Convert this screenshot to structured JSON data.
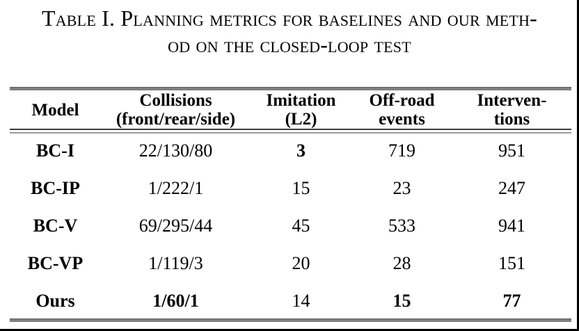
{
  "title": {
    "line1": "Table I. Planning metrics for baselines and our meth-",
    "line2": "od on the closed-loop test"
  },
  "table": {
    "headers": [
      {
        "line1": "Model",
        "line2": ""
      },
      {
        "line1": "Collisions",
        "line2": "(front/rear/side)"
      },
      {
        "line1": "Imitation",
        "line2": "(L2)"
      },
      {
        "line1": "Off-road",
        "line2": "events"
      },
      {
        "line1": "Interven-",
        "line2": "tions"
      }
    ],
    "rows": [
      {
        "cells": [
          {
            "text": "BC-I",
            "bold": true
          },
          {
            "text": "22/130/80",
            "bold": false
          },
          {
            "text": "3",
            "bold": true
          },
          {
            "text": "719",
            "bold": false
          },
          {
            "text": "951",
            "bold": false
          }
        ]
      },
      {
        "cells": [
          {
            "text": "BC-IP",
            "bold": true
          },
          {
            "text": "1/222/1",
            "bold": false
          },
          {
            "text": "15",
            "bold": false
          },
          {
            "text": "23",
            "bold": false
          },
          {
            "text": "247",
            "bold": false
          }
        ]
      },
      {
        "cells": [
          {
            "text": "BC-V",
            "bold": true
          },
          {
            "text": "69/295/44",
            "bold": false
          },
          {
            "text": "45",
            "bold": false
          },
          {
            "text": "533",
            "bold": false
          },
          {
            "text": "941",
            "bold": false
          }
        ]
      },
      {
        "cells": [
          {
            "text": "BC-VP",
            "bold": true
          },
          {
            "text": "1/119/3",
            "bold": false
          },
          {
            "text": "20",
            "bold": false
          },
          {
            "text": "28",
            "bold": false
          },
          {
            "text": "151",
            "bold": false
          }
        ]
      },
      {
        "cells": [
          {
            "text": "Ours",
            "bold": true
          },
          {
            "text": "1/60/1",
            "bold": true
          },
          {
            "text": "14",
            "bold": false
          },
          {
            "text": "15",
            "bold": true
          },
          {
            "text": "77",
            "bold": true
          }
        ]
      }
    ]
  },
  "colors": {
    "text": "#000000",
    "rule_gray": "#7f7f7f",
    "frame_black": "#000000",
    "background": "#ffffff"
  }
}
